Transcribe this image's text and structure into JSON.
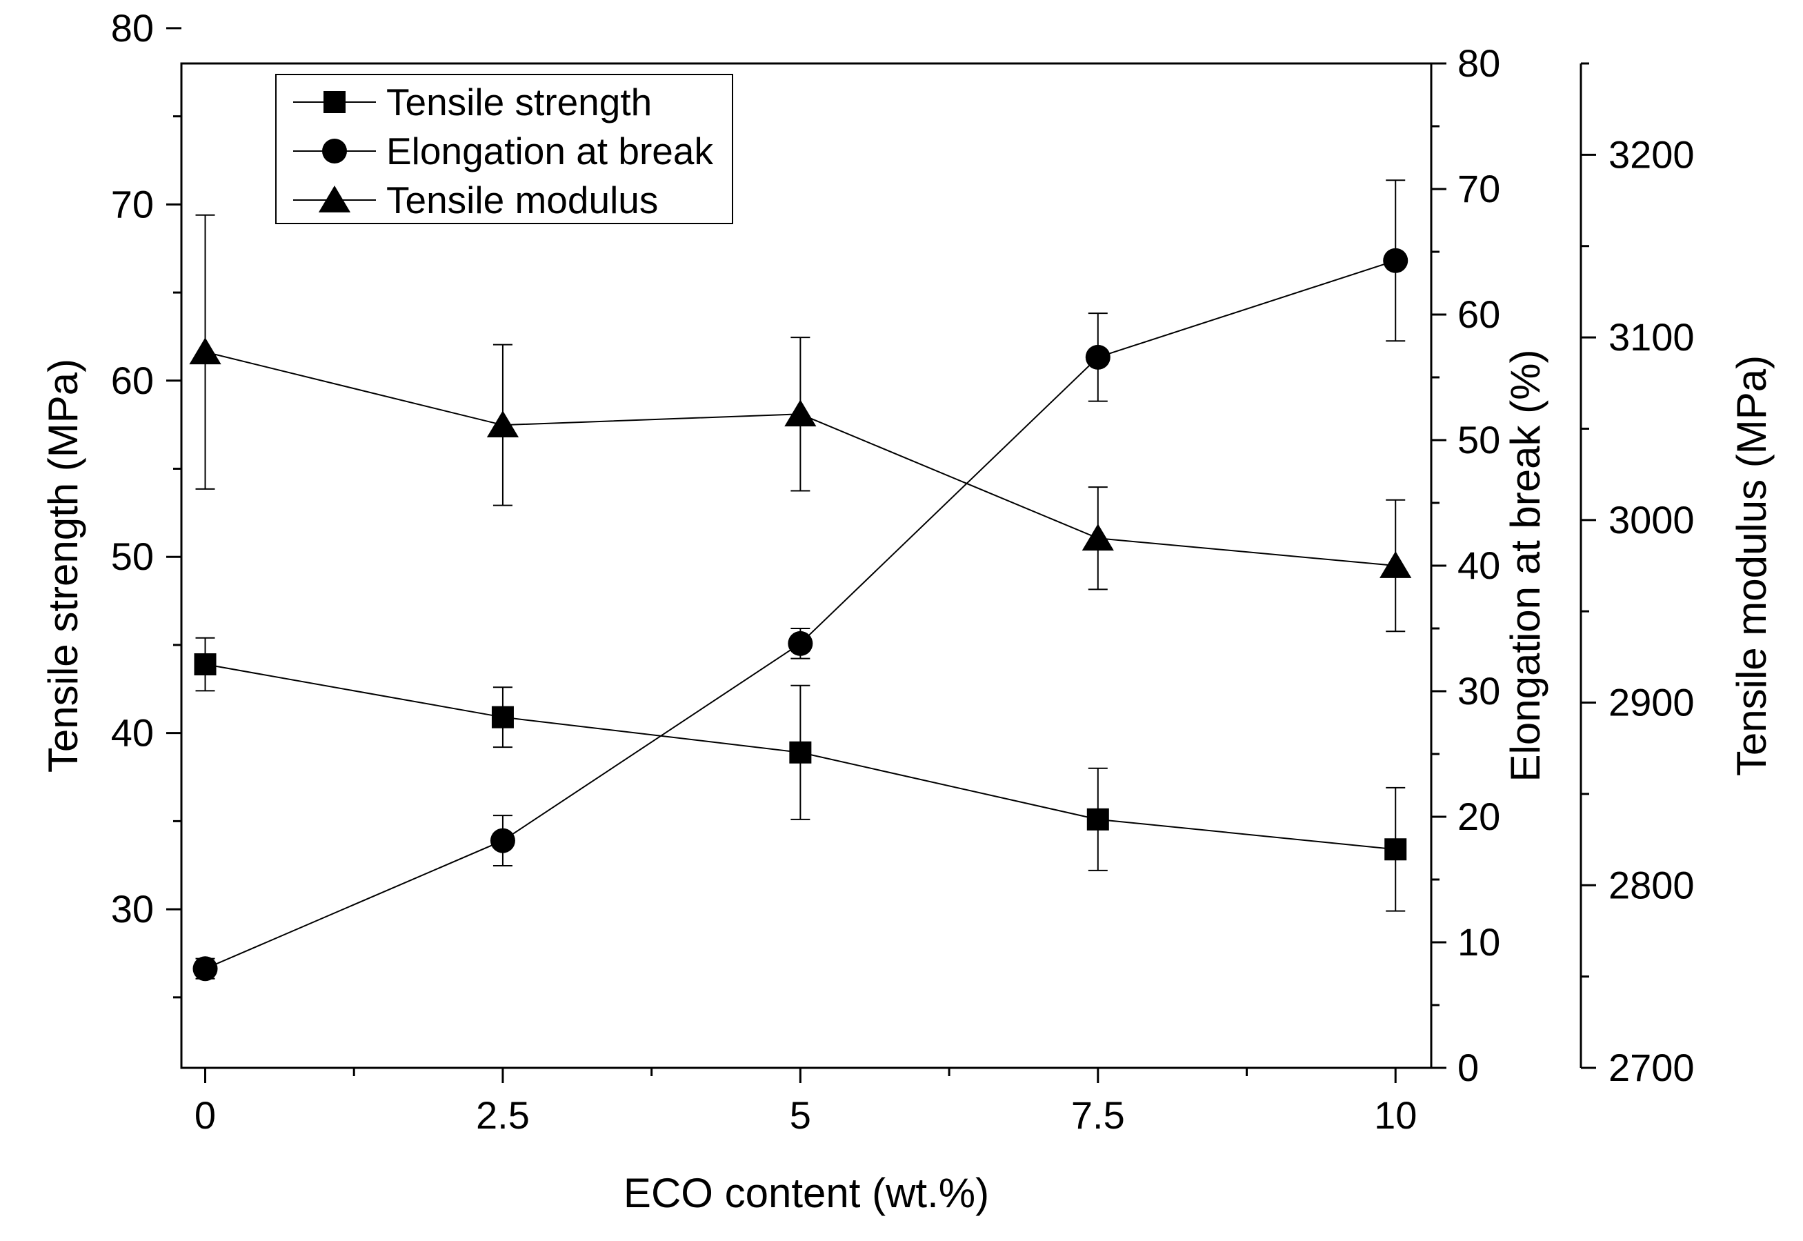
{
  "chart_data": {
    "type": "line",
    "title": "",
    "xlabel": "ECO content (wt.%)",
    "x": [
      0,
      2.5,
      5,
      7.5,
      10
    ],
    "x_tick_labels": [
      "0",
      "2.5",
      "5",
      "7.5",
      "10"
    ],
    "xlim": [
      -0.2,
      10.3
    ],
    "axes": {
      "left": {
        "label": "Tensile strength (MPa)",
        "ylim": [
          21,
          78
        ],
        "ticks": [
          30,
          40,
          50,
          60,
          70,
          80
        ],
        "tick_labels": [
          "30",
          "40",
          "50",
          "60",
          "70",
          "80"
        ]
      },
      "right1": {
        "label": "Elongation at break (%)",
        "ylim": [
          0,
          80
        ],
        "ticks": [
          0,
          10,
          20,
          30,
          40,
          50,
          60,
          70,
          80
        ],
        "tick_labels": [
          "0",
          "10",
          "20",
          "30",
          "40",
          "50",
          "60",
          "70",
          "80"
        ]
      },
      "right2": {
        "label": "Tensile modulus (MPa)",
        "ylim": [
          2700,
          3250
        ],
        "ticks": [
          2700,
          2800,
          2900,
          3000,
          3100,
          3200
        ],
        "tick_labels": [
          "2700",
          "2800",
          "2900",
          "3000",
          "3100",
          "3200"
        ]
      }
    },
    "series": [
      {
        "name": "Tensile strength",
        "axis": "left",
        "marker": "square",
        "values": [
          43.9,
          40.9,
          38.9,
          35.1,
          33.4
        ],
        "errors": [
          1.5,
          1.7,
          3.8,
          2.9,
          3.5
        ]
      },
      {
        "name": "Elongation at break",
        "axis": "right1",
        "marker": "circle",
        "values": [
          7.9,
          18.1,
          33.8,
          56.6,
          64.3
        ],
        "errors": [
          0.8,
          2.0,
          1.2,
          3.5,
          6.4
        ]
      },
      {
        "name": "Tensile modulus",
        "axis": "right2",
        "marker": "triangle",
        "values": [
          3092,
          3052,
          3058,
          2990,
          2975
        ],
        "errors": [
          75,
          44,
          42,
          28,
          36
        ]
      }
    ],
    "legend": {
      "position": "top-left",
      "entries": [
        "Tensile strength",
        "Elongation at break",
        "Tensile modulus"
      ]
    },
    "grid": false
  }
}
